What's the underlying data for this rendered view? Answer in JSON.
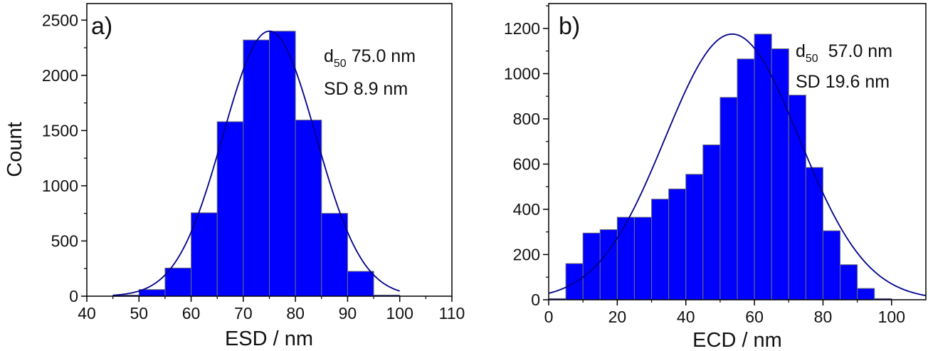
{
  "chart_data": [
    {
      "type": "bar",
      "panel_label": "a)",
      "xlabel": "ESD / nm",
      "ylabel": "Count",
      "xlim": [
        40,
        110
      ],
      "ylim": [
        0,
        2650
      ],
      "x_ticks": [
        40,
        50,
        60,
        70,
        80,
        90,
        100,
        110
      ],
      "y_ticks": [
        0,
        500,
        1000,
        1500,
        2000,
        2500
      ],
      "bin_width": 5,
      "bins": [
        {
          "start": 45,
          "value": 10
        },
        {
          "start": 50,
          "value": 60
        },
        {
          "start": 55,
          "value": 255
        },
        {
          "start": 60,
          "value": 755
        },
        {
          "start": 65,
          "value": 1580
        },
        {
          "start": 70,
          "value": 2320
        },
        {
          "start": 75,
          "value": 2400
        },
        {
          "start": 80,
          "value": 1595
        },
        {
          "start": 85,
          "value": 750
        },
        {
          "start": 90,
          "value": 225
        },
        {
          "start": 95,
          "value": 10
        }
      ],
      "fit": {
        "type": "gaussian",
        "mean": 75,
        "sd": 8.9,
        "peak": 2400,
        "from": 45,
        "to": 100
      },
      "annotation": {
        "d_label": "d",
        "d_sub": "50",
        "d_value": "75.0 nm",
        "sd_label": "SD",
        "sd_value": "8.9 nm"
      },
      "bar_color": "#0000ff",
      "fit_color": "#00008b"
    },
    {
      "type": "bar",
      "panel_label": "b)",
      "xlabel": "ECD / nm",
      "ylabel": "",
      "xlim": [
        0,
        110
      ],
      "ylim": [
        0,
        1310
      ],
      "x_ticks": [
        0,
        20,
        40,
        60,
        80,
        100
      ],
      "y_ticks": [
        0,
        200,
        400,
        600,
        800,
        1000,
        1200
      ],
      "bin_width": 5,
      "bins": [
        {
          "start": 0,
          "value": 5
        },
        {
          "start": 5,
          "value": 160
        },
        {
          "start": 10,
          "value": 295
        },
        {
          "start": 15,
          "value": 310
        },
        {
          "start": 20,
          "value": 365
        },
        {
          "start": 25,
          "value": 365
        },
        {
          "start": 30,
          "value": 445
        },
        {
          "start": 35,
          "value": 490
        },
        {
          "start": 40,
          "value": 555
        },
        {
          "start": 45,
          "value": 685
        },
        {
          "start": 50,
          "value": 895
        },
        {
          "start": 55,
          "value": 1065
        },
        {
          "start": 60,
          "value": 1175
        },
        {
          "start": 65,
          "value": 1110
        },
        {
          "start": 70,
          "value": 905
        },
        {
          "start": 75,
          "value": 585
        },
        {
          "start": 80,
          "value": 305
        },
        {
          "start": 85,
          "value": 155
        },
        {
          "start": 90,
          "value": 50
        },
        {
          "start": 95,
          "value": 5
        }
      ],
      "fit": {
        "type": "gaussian",
        "mean": 53.5,
        "sd": 19.6,
        "peak": 1175,
        "from": 0,
        "to": 110
      },
      "annotation": {
        "d_label": "d",
        "d_sub": "50",
        "d_value": "57.0 nm",
        "sd_label": "SD",
        "sd_value": "19.6 nm"
      },
      "bar_color": "#0000ff",
      "fit_color": "#00008b"
    }
  ]
}
